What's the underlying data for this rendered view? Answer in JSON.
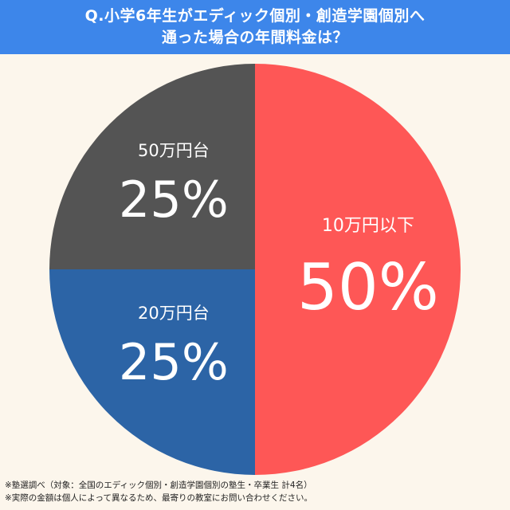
{
  "title_lines": [
    "Q.小学6年生がエディック個別・創造学園個別へ",
    "通った場合の年間料金は？"
  ],
  "chart_data": {
    "type": "pie",
    "title": "Q.小学6年生がエディック個別・創造学園個別へ通った場合の年間料金は？",
    "slices": [
      {
        "label": "10万円以下",
        "value": 50,
        "display": "50%",
        "color": "#fe5756"
      },
      {
        "label": "20万円台",
        "value": 25,
        "display": "25%",
        "color": "#2c64a6"
      },
      {
        "label": "50万円台",
        "value": 25,
        "display": "25%",
        "color": "#545454"
      }
    ],
    "start_angle": "12 o'clock",
    "direction": "clockwise",
    "legend": "none"
  },
  "notes": [
    "※塾選調べ（対象：全国のエディック個別・創造学園個別の塾生・卒業生 計4名）",
    "※実際の金額は個人によって異なるため、最寄りの教室にお問い合わせください。"
  ]
}
